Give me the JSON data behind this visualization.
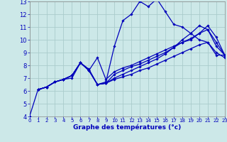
{
  "xlabel": "Graphe des températures (°c)",
  "bg_color": "#cce8e8",
  "grid_color": "#aacccc",
  "line_color": "#0000bb",
  "label_color": "#0000bb",
  "xlim": [
    0,
    23
  ],
  "ylim": [
    4,
    13
  ],
  "xticks": [
    0,
    1,
    2,
    3,
    4,
    5,
    6,
    7,
    8,
    9,
    10,
    11,
    12,
    13,
    14,
    15,
    16,
    17,
    18,
    19,
    20,
    21,
    22,
    23
  ],
  "yticks": [
    4,
    5,
    6,
    7,
    8,
    9,
    10,
    11,
    12,
    13
  ],
  "lines": [
    {
      "x": [
        0,
        1,
        2,
        3,
        4,
        5,
        6,
        7,
        8,
        9,
        10,
        11,
        12,
        13,
        14,
        15,
        16,
        17,
        18,
        19,
        20,
        21,
        22,
        23
      ],
      "y": [
        4,
        6.1,
        6.3,
        6.7,
        6.9,
        7.0,
        8.2,
        7.7,
        6.5,
        6.7,
        9.5,
        11.5,
        12.0,
        13.0,
        12.6,
        13.2,
        12.2,
        11.2,
        11.0,
        10.5,
        10.0,
        9.8,
        8.8,
        8.8
      ]
    },
    {
      "x": [
        1,
        2,
        3,
        4,
        5,
        6,
        7,
        8,
        9,
        10,
        11,
        12,
        13,
        14,
        15,
        16,
        17,
        18,
        19,
        20,
        21,
        22,
        23
      ],
      "y": [
        6.1,
        6.3,
        6.7,
        6.9,
        7.2,
        8.2,
        7.6,
        8.6,
        6.9,
        7.5,
        7.8,
        8.0,
        8.3,
        8.6,
        8.9,
        9.2,
        9.5,
        9.8,
        10.0,
        10.5,
        10.8,
        9.5,
        8.8
      ]
    },
    {
      "x": [
        1,
        2,
        3,
        4,
        5,
        6,
        7,
        8,
        9,
        10,
        11,
        12,
        13,
        14,
        15,
        16,
        17,
        18,
        19,
        20,
        21,
        22,
        23
      ],
      "y": [
        6.1,
        6.3,
        6.7,
        6.9,
        7.2,
        8.2,
        7.6,
        6.5,
        6.6,
        7.3,
        7.6,
        7.9,
        8.1,
        8.4,
        8.7,
        9.0,
        9.4,
        9.8,
        10.1,
        10.5,
        11.1,
        10.2,
        8.8
      ]
    },
    {
      "x": [
        1,
        2,
        3,
        4,
        5,
        6,
        7,
        8,
        9,
        10,
        11,
        12,
        13,
        14,
        15,
        16,
        17,
        18,
        19,
        20,
        21,
        22,
        23
      ],
      "y": [
        6.1,
        6.3,
        6.7,
        6.9,
        7.2,
        8.2,
        7.6,
        6.5,
        6.6,
        7.0,
        7.3,
        7.6,
        7.9,
        8.2,
        8.5,
        8.9,
        9.4,
        10.0,
        10.5,
        11.1,
        10.8,
        9.8,
        8.8
      ]
    },
    {
      "x": [
        1,
        2,
        3,
        4,
        5,
        6,
        7,
        8,
        9,
        10,
        11,
        12,
        13,
        14,
        15,
        16,
        17,
        18,
        19,
        20,
        21,
        22,
        23
      ],
      "y": [
        6.1,
        6.3,
        6.7,
        6.9,
        7.2,
        8.2,
        7.6,
        6.5,
        6.6,
        6.9,
        7.1,
        7.3,
        7.6,
        7.8,
        8.1,
        8.4,
        8.7,
        9.0,
        9.3,
        9.6,
        9.8,
        9.0,
        8.6
      ]
    }
  ],
  "spine_color": "#888888",
  "xlabel_fontsize": 6.5,
  "tick_fontsize_x": 5,
  "tick_fontsize_y": 6,
  "marker": "D",
  "markersize": 1.8,
  "linewidth": 0.9
}
